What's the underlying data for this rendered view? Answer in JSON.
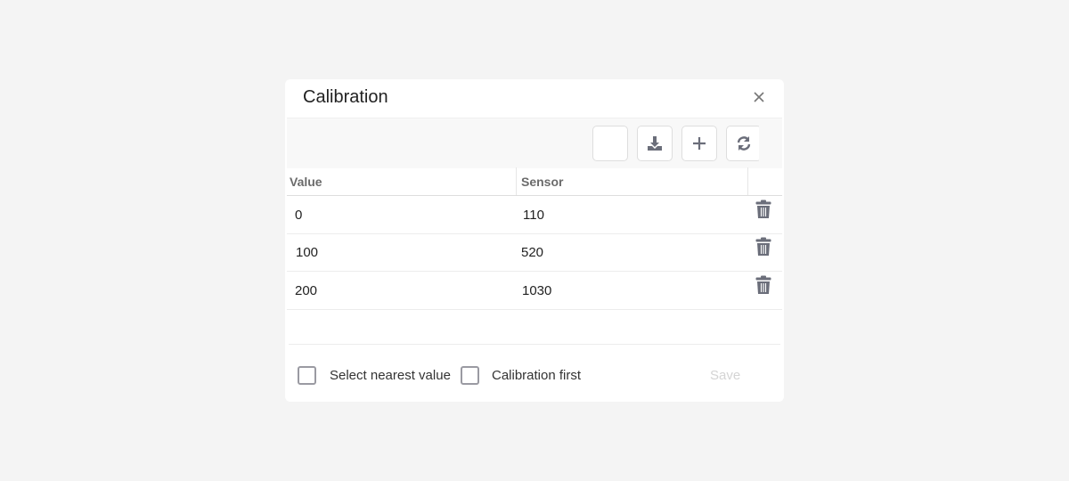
{
  "dialog": {
    "title": "Calibration"
  },
  "toolbar": {
    "buttons": [
      "blank",
      "download-icon",
      "plus-icon",
      "refresh-icon"
    ]
  },
  "table": {
    "headers": [
      "Value",
      "Sensor"
    ],
    "rows": [
      {
        "value": "0",
        "sensor": "110"
      },
      {
        "value": "100",
        "sensor": "520"
      },
      {
        "value": "200",
        "sensor": "1030"
      }
    ]
  },
  "footer": {
    "select_nearest": {
      "label": "Select nearest value",
      "checked": false
    },
    "calibration_first": {
      "label": "Calibration first",
      "checked": false
    },
    "save_label": "Save"
  },
  "colors": {
    "icon": "#6b6e7a",
    "background": "#f4f4f4",
    "disabled_text": "#d4d4d4"
  }
}
